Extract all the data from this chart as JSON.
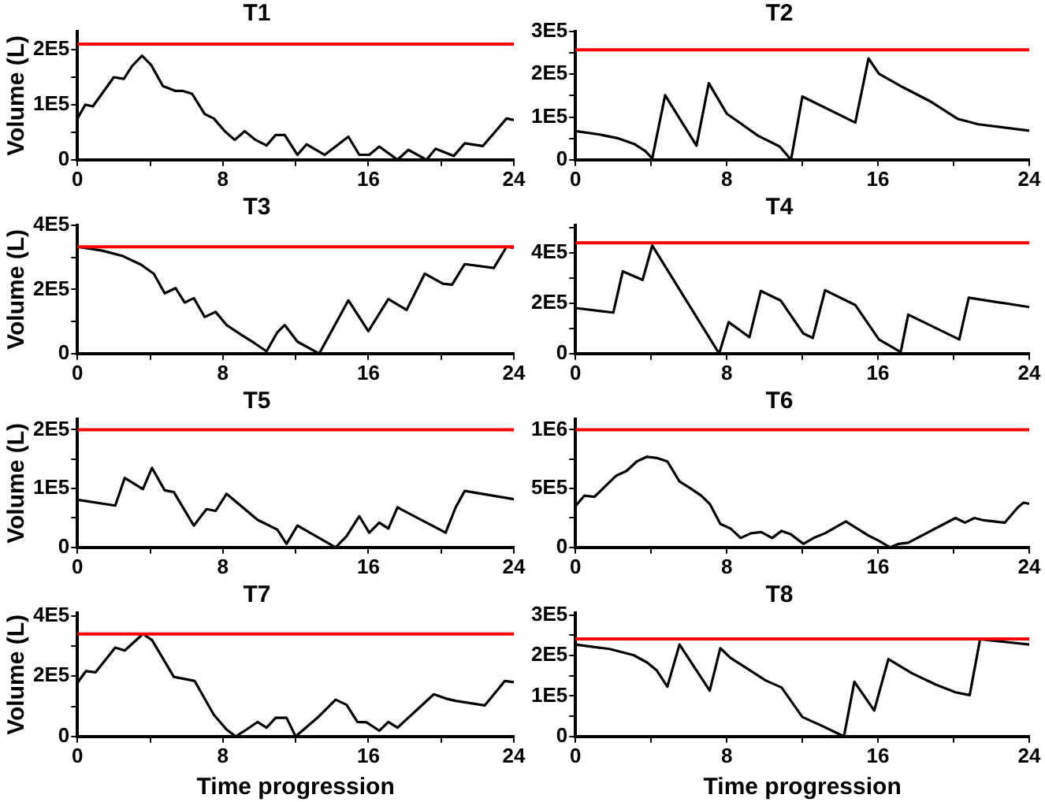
{
  "chart_data": [
    {
      "type": "line",
      "title": "T1",
      "ylabel": "Volume (L)",
      "xlim": [
        0,
        24
      ],
      "xticks": [
        0,
        {
          "value": 4,
          "label": null
        },
        8,
        {
          "value": 12,
          "label": null
        },
        16,
        {
          "value": 20,
          "label": null
        },
        24
      ],
      "ylim": [
        0,
        233000
      ],
      "yticks": [
        {
          "value": 0,
          "label": "0"
        },
        {
          "value": 50000,
          "label": null
        },
        {
          "value": 100000,
          "label": "1E5"
        },
        {
          "value": 150000,
          "label": null
        },
        {
          "value": 200000,
          "label": "2E5"
        }
      ],
      "grid": false,
      "legend": false,
      "marker": "none",
      "ref_lines": [
        {
          "axis": "y",
          "value": 210000,
          "color": "#ff0000"
        }
      ],
      "series": [
        {
          "color": "#000000",
          "x": [
            0,
            0.43,
            0.85,
            2,
            2.55,
            3,
            3.55,
            4.06,
            4.7,
            5.4,
            5.8,
            6.3,
            7,
            7.5,
            8.1,
            8.65,
            9.2,
            9.8,
            10.4,
            10.9,
            11.4,
            12.1,
            12.6,
            13.6,
            14.9,
            15.5,
            16.05,
            16.6,
            17.6,
            18.2,
            19.2,
            19.7,
            20.7,
            21.3,
            22.3,
            23.6,
            24
          ],
          "values": [
            75000,
            100000,
            97000,
            150000,
            147000,
            170000,
            189000,
            172000,
            134000,
            125000,
            125000,
            120000,
            83000,
            75000,
            52000,
            36000,
            52000,
            36000,
            26000,
            45000,
            45000,
            9000,
            28000,
            9000,
            42000,
            9000,
            9000,
            24000,
            0,
            18000,
            0,
            20000,
            7000,
            30000,
            25000,
            75000,
            72000
          ]
        }
      ]
    },
    {
      "type": "line",
      "title": "T2",
      "xlim": [
        0,
        24
      ],
      "xticks": [
        0,
        {
          "value": 4,
          "label": null
        },
        8,
        {
          "value": 12,
          "label": null
        },
        16,
        {
          "value": 20,
          "label": null
        },
        24
      ],
      "ylim": [
        0,
        300000
      ],
      "yticks": [
        {
          "value": 0,
          "label": "0"
        },
        {
          "value": 50000,
          "label": null
        },
        {
          "value": 100000,
          "label": "1E5"
        },
        {
          "value": 150000,
          "label": null
        },
        {
          "value": 200000,
          "label": "2E5"
        },
        {
          "value": 250000,
          "label": null
        },
        {
          "value": 300000,
          "label": "3E5"
        }
      ],
      "grid": false,
      "legend": false,
      "marker": "none",
      "ref_lines": [
        {
          "axis": "y",
          "value": 257000,
          "color": "#ff0000"
        }
      ],
      "series": [
        {
          "color": "#000000",
          "x": [
            0,
            1.28,
            2.27,
            3.1,
            3.7,
            4.06,
            4.74,
            6.4,
            7.05,
            8,
            8.8,
            9.66,
            10.8,
            11.4,
            12,
            14.8,
            15.5,
            16.05,
            17.3,
            18.75,
            20.2,
            21.3,
            24
          ],
          "values": [
            67000,
            59000,
            50000,
            37000,
            20000,
            3000,
            151000,
            33000,
            179000,
            108000,
            83000,
            56000,
            31000,
            0,
            148000,
            87000,
            237000,
            201000,
            170000,
            137000,
            96000,
            83000,
            68000
          ]
        }
      ]
    },
    {
      "type": "line",
      "title": "T3",
      "ylabel": "Volume (L)",
      "xlim": [
        0,
        24
      ],
      "xticks": [
        0,
        {
          "value": 4,
          "label": null
        },
        8,
        {
          "value": 12,
          "label": null
        },
        16,
        {
          "value": 20,
          "label": null
        },
        24
      ],
      "ylim": [
        0,
        400000
      ],
      "yticks": [
        {
          "value": 0,
          "label": "0"
        },
        {
          "value": 100000,
          "label": null
        },
        {
          "value": 200000,
          "label": "2E5"
        },
        {
          "value": 300000,
          "label": null
        },
        {
          "value": 400000,
          "label": "4E5"
        }
      ],
      "grid": false,
      "legend": false,
      "marker": "none",
      "ref_lines": [
        {
          "axis": "y",
          "value": 333000,
          "color": "#ff0000"
        }
      ],
      "series": [
        {
          "color": "#000000",
          "x": [
            0,
            1.36,
            2.5,
            3.5,
            4.2,
            4.8,
            5.4,
            5.9,
            6.4,
            7,
            7.6,
            8.2,
            9,
            9.7,
            10.4,
            11,
            11.4,
            12.1,
            13.3,
            14.9,
            16,
            17.1,
            18.1,
            19.1,
            20.1,
            20.6,
            21.3,
            22.9,
            23.6,
            24
          ],
          "values": [
            333000,
            321000,
            304000,
            277000,
            249000,
            188000,
            204000,
            159000,
            173000,
            114000,
            130000,
            89000,
            59000,
            34000,
            7000,
            67000,
            89000,
            37000,
            0,
            166000,
            70000,
            170000,
            136000,
            249000,
            218000,
            215000,
            279000,
            267000,
            333000,
            330000
          ]
        }
      ]
    },
    {
      "type": "line",
      "title": "T4",
      "xlim": [
        0,
        24
      ],
      "xticks": [
        0,
        {
          "value": 4,
          "label": null
        },
        8,
        {
          "value": 12,
          "label": null
        },
        16,
        {
          "value": 20,
          "label": null
        },
        24
      ],
      "ylim": [
        0,
        510000
      ],
      "yticks": [
        {
          "value": 0,
          "label": "0"
        },
        {
          "value": 100000,
          "label": null
        },
        {
          "value": 200000,
          "label": "2E5"
        },
        {
          "value": 300000,
          "label": null
        },
        {
          "value": 400000,
          "label": "4E5"
        },
        {
          "value": 500000,
          "label": null
        }
      ],
      "grid": false,
      "legend": false,
      "marker": "none",
      "ref_lines": [
        {
          "axis": "y",
          "value": 440000,
          "color": "#ff0000"
        }
      ],
      "series": [
        {
          "color": "#000000",
          "x": [
            0,
            2,
            2.5,
            3.55,
            4.06,
            7.6,
            8.1,
            9.2,
            9.8,
            10.85,
            12.05,
            12.55,
            13.2,
            14.8,
            16.05,
            17.2,
            17.6,
            20.3,
            20.8,
            24
          ],
          "values": [
            181000,
            163000,
            327000,
            293000,
            430000,
            0,
            125000,
            65000,
            249000,
            211000,
            80000,
            62000,
            252000,
            193000,
            56000,
            6000,
            155000,
            56000,
            222000,
            185000
          ]
        }
      ]
    },
    {
      "type": "line",
      "title": "T5",
      "ylabel": "Volume (L)",
      "xlim": [
        0,
        24
      ],
      "xticks": [
        0,
        {
          "value": 4,
          "label": null
        },
        8,
        {
          "value": 12,
          "label": null
        },
        16,
        {
          "value": 20,
          "label": null
        },
        24
      ],
      "ylim": [
        0,
        218000
      ],
      "yticks": [
        {
          "value": 0,
          "label": "0"
        },
        {
          "value": 50000,
          "label": null
        },
        {
          "value": 100000,
          "label": "1E5"
        },
        {
          "value": 150000,
          "label": null
        },
        {
          "value": 200000,
          "label": "2E5"
        }
      ],
      "grid": false,
      "legend": false,
      "marker": "none",
      "ref_lines": [
        {
          "axis": "y",
          "value": 200000,
          "color": "#ff0000"
        }
      ],
      "series": [
        {
          "color": "#000000",
          "x": [
            0,
            2.08,
            2.6,
            3.6,
            4.1,
            4.8,
            5.3,
            6.4,
            7.1,
            7.6,
            8.2,
            9.9,
            11,
            11.5,
            12.1,
            14.2,
            14.8,
            15.5,
            16.05,
            16.6,
            17.1,
            17.6,
            20.25,
            20.8,
            21.3,
            24
          ],
          "values": [
            81000,
            71000,
            118000,
            99000,
            135000,
            97000,
            94000,
            37000,
            65000,
            62000,
            91000,
            47000,
            30000,
            6000,
            37000,
            0,
            19000,
            53000,
            25000,
            42000,
            32000,
            68000,
            25000,
            68000,
            96000,
            82000
          ]
        }
      ]
    },
    {
      "type": "line",
      "title": "T6",
      "xlim": [
        0,
        24
      ],
      "xticks": [
        0,
        {
          "value": 4,
          "label": null
        },
        8,
        {
          "value": 12,
          "label": null
        },
        16,
        {
          "value": 20,
          "label": null
        },
        24
      ],
      "ylim": [
        0,
        1090000
      ],
      "yticks": [
        {
          "value": 0,
          "label": "0"
        },
        {
          "value": 250000,
          "label": null
        },
        {
          "value": 500000,
          "label": "5E5"
        },
        {
          "value": 750000,
          "label": null
        },
        {
          "value": 1000000,
          "label": "1E6"
        }
      ],
      "grid": false,
      "legend": false,
      "marker": "none",
      "ref_lines": [
        {
          "axis": "y",
          "value": 1000000,
          "color": "#ff0000"
        }
      ],
      "series": [
        {
          "color": "#000000",
          "x": [
            0,
            0.47,
            1,
            2.16,
            2.7,
            3.24,
            3.78,
            4.3,
            4.86,
            5.5,
            6.1,
            6.65,
            7.1,
            7.66,
            8.2,
            8.74,
            9.28,
            9.82,
            10.4,
            10.9,
            11.4,
            12.05,
            12.6,
            13.2,
            14.3,
            15.5,
            16,
            16.65,
            17.1,
            17.6,
            20.1,
            20.6,
            21.1,
            21.6,
            22.7,
            23.4,
            23.7,
            24
          ],
          "values": [
            350000,
            440000,
            430000,
            610000,
            650000,
            730000,
            770000,
            760000,
            730000,
            560000,
            500000,
            440000,
            370000,
            200000,
            160000,
            80000,
            120000,
            130000,
            80000,
            140000,
            110000,
            30000,
            80000,
            120000,
            220000,
            100000,
            60000,
            0,
            30000,
            40000,
            250000,
            210000,
            250000,
            230000,
            210000,
            340000,
            380000,
            370000
          ]
        }
      ]
    },
    {
      "type": "line",
      "title": "T7",
      "xlabel": "Time progression",
      "ylabel": "Volume (L)",
      "xlim": [
        0,
        24
      ],
      "xticks": [
        0,
        {
          "value": 4,
          "label": null
        },
        8,
        {
          "value": 12,
          "label": null
        },
        16,
        {
          "value": 20,
          "label": null
        },
        24
      ],
      "ylim": [
        0,
        410000
      ],
      "yticks": [
        {
          "value": 0,
          "label": "0"
        },
        {
          "value": 100000,
          "label": null
        },
        {
          "value": 200000,
          "label": "2E5"
        },
        {
          "value": 300000,
          "label": null
        },
        {
          "value": 400000,
          "label": "4E5"
        }
      ],
      "grid": false,
      "legend": false,
      "marker": "none",
      "ref_lines": [
        {
          "axis": "y",
          "value": 340000,
          "color": "#ff0000"
        }
      ],
      "series": [
        {
          "color": "#000000",
          "x": [
            0,
            0.47,
            1,
            2.08,
            2.6,
            3.6,
            4.1,
            5.3,
            6.45,
            7.5,
            8.2,
            8.7,
            9.3,
            9.9,
            10.4,
            10.9,
            11.5,
            12,
            13.2,
            14.2,
            14.8,
            15.4,
            15.9,
            16.6,
            17.1,
            17.6,
            19.6,
            20.25,
            20.8,
            22.4,
            23.5,
            24
          ],
          "values": [
            178000,
            217000,
            213000,
            295000,
            285000,
            340000,
            320000,
            198000,
            184000,
            72000,
            23000,
            0,
            23000,
            48000,
            29000,
            62000,
            62000,
            0,
            62000,
            122000,
            105000,
            48000,
            47000,
            19000,
            48000,
            29000,
            140000,
            126000,
            118000,
            103000,
            184000,
            180000
          ]
        }
      ]
    },
    {
      "type": "line",
      "title": "T8",
      "xlabel": "Time progression",
      "xlim": [
        0,
        24
      ],
      "xticks": [
        0,
        {
          "value": 4,
          "label": null
        },
        8,
        {
          "value": 12,
          "label": null
        },
        16,
        {
          "value": 20,
          "label": null
        },
        24
      ],
      "ylim": [
        0,
        305000
      ],
      "yticks": [
        {
          "value": 0,
          "label": "0"
        },
        {
          "value": 50000,
          "label": null
        },
        {
          "value": 100000,
          "label": "1E5"
        },
        {
          "value": 150000,
          "label": null
        },
        {
          "value": 200000,
          "label": "2E5"
        },
        {
          "value": 250000,
          "label": null
        },
        {
          "value": 300000,
          "label": "3E5"
        }
      ],
      "grid": false,
      "legend": false,
      "marker": "none",
      "ref_lines": [
        {
          "axis": "y",
          "value": 241000,
          "color": "#ff0000"
        }
      ],
      "series": [
        {
          "color": "#000000",
          "x": [
            0,
            1.8,
            3.06,
            3.78,
            4.3,
            4.86,
            5.5,
            7.1,
            7.66,
            8.2,
            9,
            10.07,
            10.9,
            12,
            12.95,
            14.2,
            14.75,
            15.8,
            16.55,
            17.8,
            19.06,
            20.1,
            20.85,
            21.4,
            24
          ],
          "values": [
            227000,
            216000,
            201000,
            183000,
            163000,
            123000,
            227000,
            113000,
            218000,
            194000,
            170000,
            138000,
            121000,
            48000,
            28000,
            0,
            135000,
            64000,
            191000,
            156000,
            128000,
            109000,
            102000,
            240000,
            227000
          ]
        }
      ]
    }
  ]
}
